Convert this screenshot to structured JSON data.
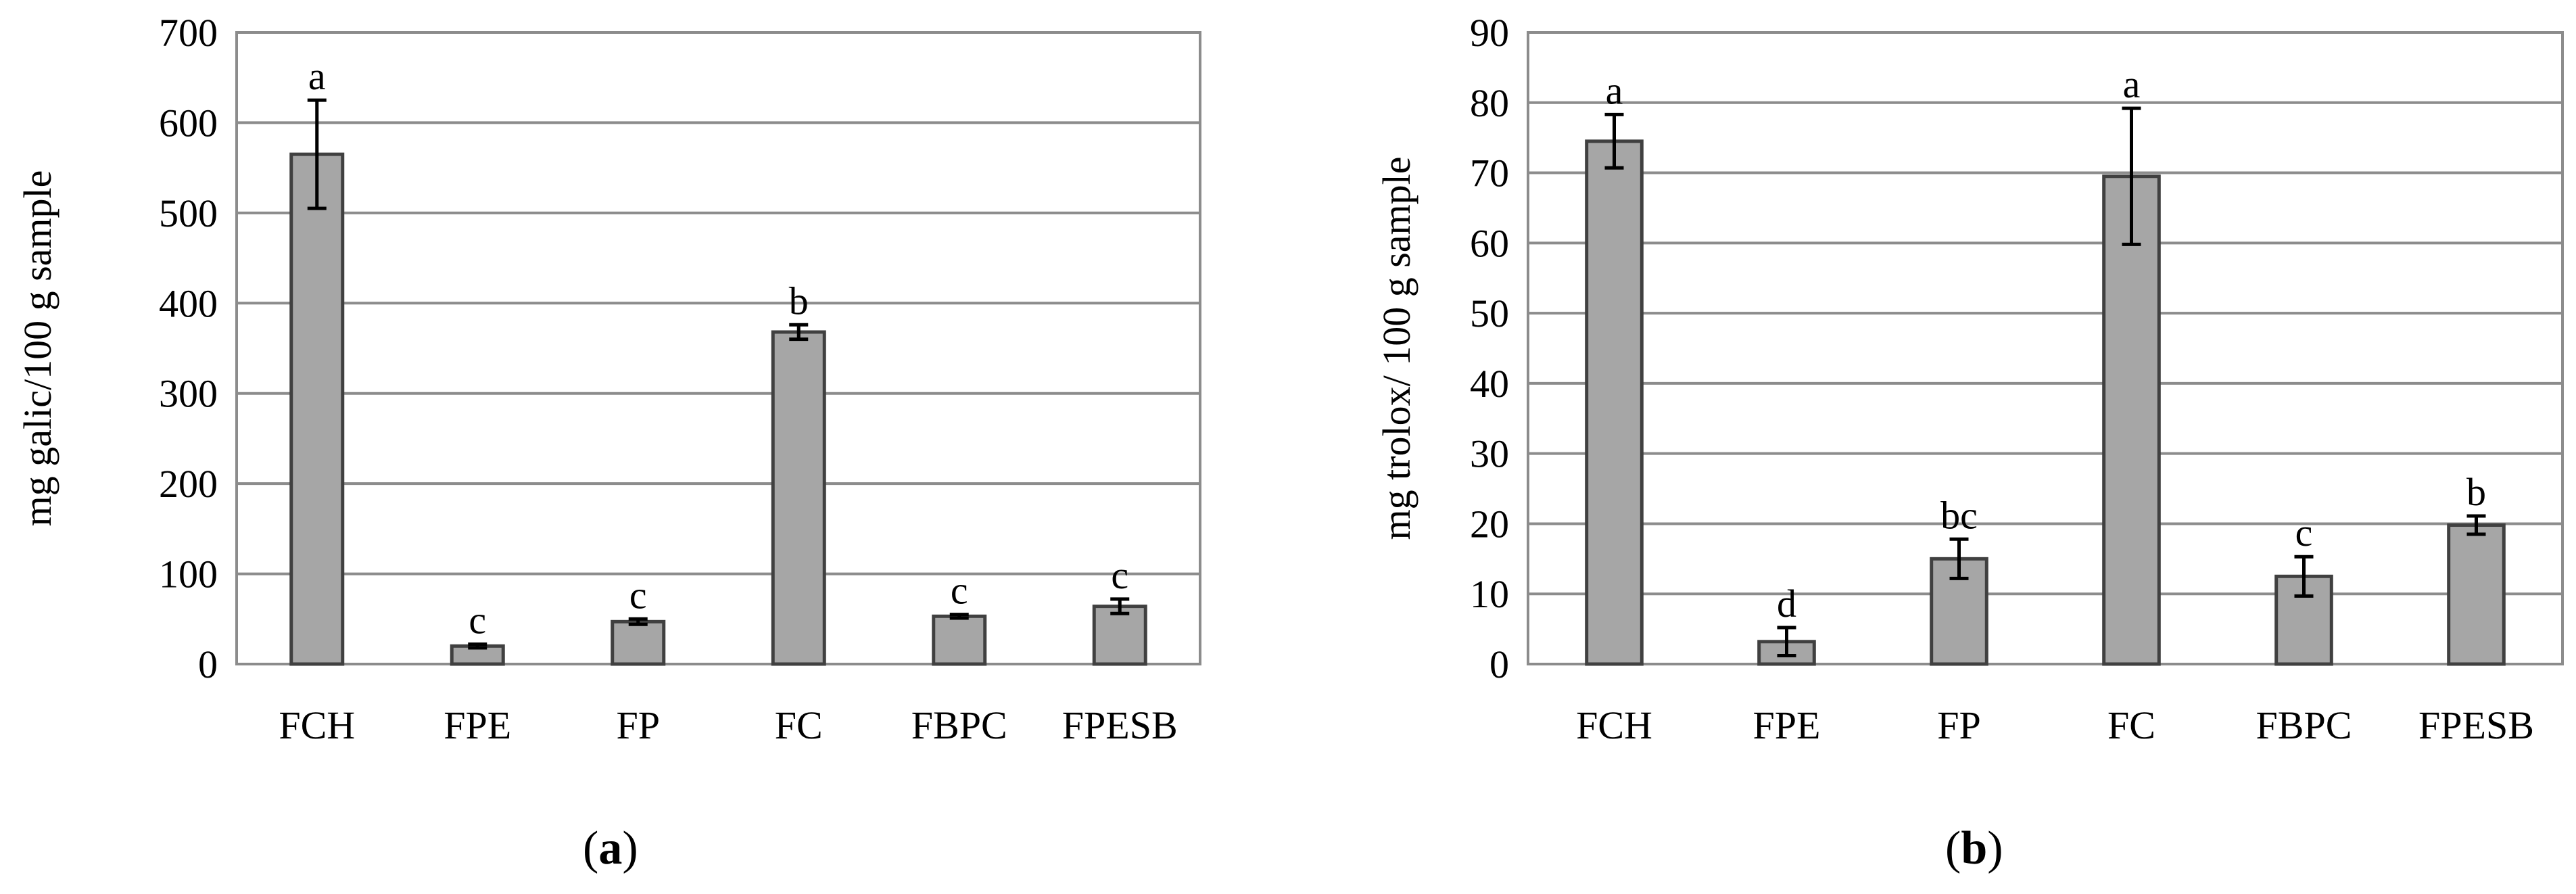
{
  "chart_data": [
    {
      "type": "bar",
      "panel_label": "a",
      "ylabel": "mg galic/100 g sample",
      "xlabel": "",
      "categories": [
        "FCH",
        "FPE",
        "FP",
        "FC",
        "FBPC",
        "FPESB"
      ],
      "values": [
        565,
        20,
        47,
        368,
        53,
        64
      ],
      "errors": [
        60,
        2,
        3,
        8,
        2,
        8
      ],
      "sig_letters": [
        "a",
        "c",
        "c",
        "b",
        "c",
        "c"
      ],
      "ylim": [
        0,
        700
      ],
      "yticks": [
        0,
        100,
        200,
        300,
        400,
        500,
        600,
        700
      ],
      "grid": true,
      "bar_color": "#a6a6a6",
      "bar_edge_color": "#404040",
      "grid_color": "#8c8c8c"
    },
    {
      "type": "bar",
      "panel_label": "b",
      "ylabel": "mg trolox/ 100 g sample",
      "xlabel": "",
      "categories": [
        "FCH",
        "FPE",
        "FP",
        "FC",
        "FBPC",
        "FPESB"
      ],
      "values": [
        74.5,
        3.2,
        15,
        69.5,
        12.5,
        19.8
      ],
      "errors": [
        3.8,
        2,
        2.8,
        9.7,
        2.8,
        1.3
      ],
      "sig_letters": [
        "a",
        "d",
        "bc",
        "a",
        "c",
        "b"
      ],
      "ylim": [
        0,
        90
      ],
      "yticks": [
        0,
        10,
        20,
        30,
        40,
        50,
        60,
        70,
        80,
        90
      ],
      "grid": true,
      "bar_color": "#a6a6a6",
      "bar_edge_color": "#404040",
      "grid_color": "#8c8c8c"
    }
  ]
}
